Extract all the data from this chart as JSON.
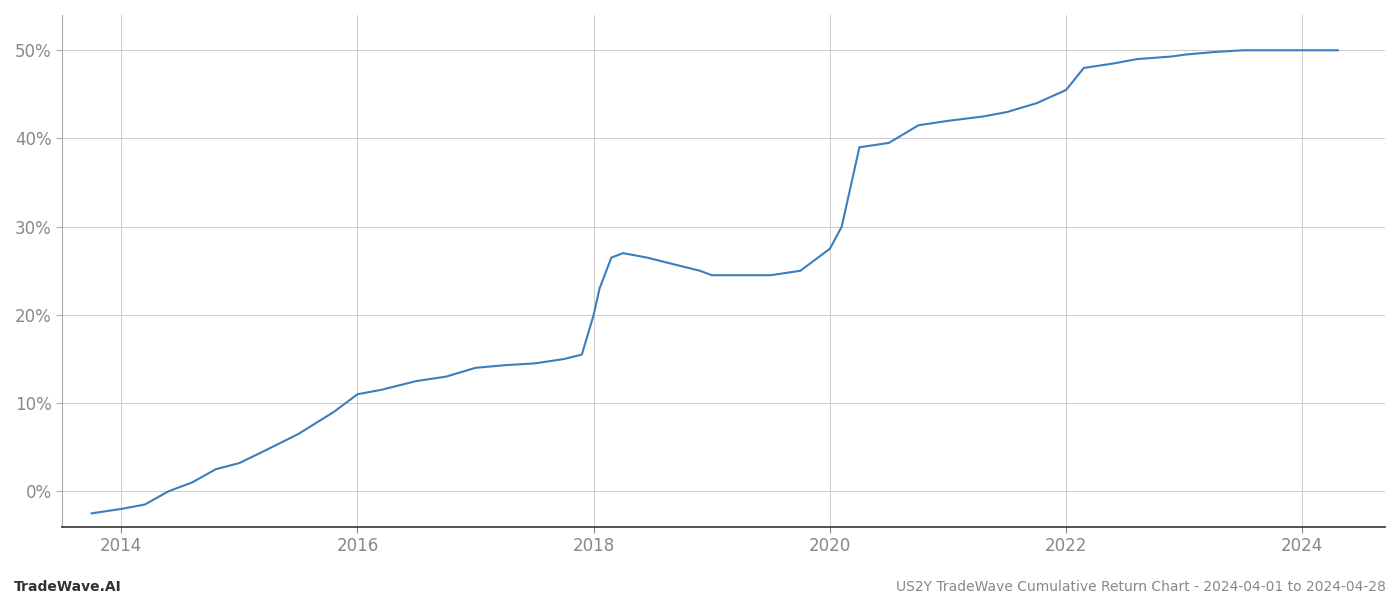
{
  "title": "US2Y TradeWave Cumulative Return Chart - 2024-04-01 to 2024-04-28",
  "line_color": "#3a7ebf",
  "line_width": 1.5,
  "background_color": "#ffffff",
  "grid_color": "#cccccc",
  "footer_left": "TradeWave.AI",
  "footer_right": "US2Y TradeWave Cumulative Return Chart - 2024-04-01 to 2024-04-28",
  "x_values": [
    2013.75,
    2014.0,
    2014.2,
    2014.4,
    2014.6,
    2014.8,
    2015.0,
    2015.2,
    2015.5,
    2015.8,
    2016.0,
    2016.2,
    2016.5,
    2016.75,
    2017.0,
    2017.25,
    2017.5,
    2017.75,
    2017.9,
    2018.0,
    2018.05,
    2018.15,
    2018.25,
    2018.45,
    2018.6,
    2018.9,
    2019.0,
    2019.2,
    2019.5,
    2019.75,
    2019.85,
    2020.0,
    2020.1,
    2020.2,
    2020.25,
    2020.5,
    2020.75,
    2021.0,
    2021.3,
    2021.5,
    2021.75,
    2022.0,
    2022.15,
    2022.4,
    2022.6,
    2022.9,
    2023.0,
    2023.25,
    2023.5,
    2023.75,
    2024.0,
    2024.3
  ],
  "y_values": [
    -2.5,
    -2.0,
    -1.5,
    0.0,
    1.0,
    2.5,
    3.2,
    4.5,
    6.5,
    9.0,
    11.0,
    11.5,
    12.5,
    13.0,
    14.0,
    14.3,
    14.5,
    15.0,
    15.5,
    20.0,
    23.0,
    26.5,
    27.0,
    26.5,
    26.0,
    25.0,
    24.5,
    24.5,
    24.5,
    25.0,
    26.0,
    27.5,
    30.0,
    36.0,
    39.0,
    39.5,
    41.5,
    42.0,
    42.5,
    43.0,
    44.0,
    45.5,
    48.0,
    48.5,
    49.0,
    49.3,
    49.5,
    49.8,
    50.0,
    50.0,
    50.0,
    50.0
  ],
  "yticks": [
    0,
    10,
    20,
    30,
    40,
    50
  ],
  "ytick_labels": [
    "0%",
    "10%",
    "20%",
    "30%",
    "40%",
    "50%"
  ],
  "xticks": [
    2014,
    2016,
    2018,
    2020,
    2022,
    2024
  ],
  "xtick_labels": [
    "2014",
    "2016",
    "2018",
    "2020",
    "2022",
    "2024"
  ],
  "ylim": [
    -4,
    54
  ],
  "xlim": [
    2013.5,
    2024.7
  ]
}
